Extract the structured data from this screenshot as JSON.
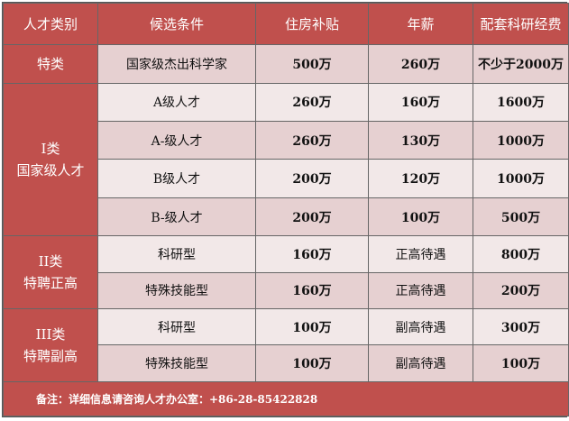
{
  "headers": [
    "人才类别",
    "候选条件",
    "住房补贴",
    "年薪",
    "配套科研经费"
  ],
  "groups": [
    {
      "name": "特类",
      "sub": "",
      "rows": [
        [
          "国家级杰出科学家",
          "500万",
          "260万",
          "不少于2000万"
        ]
      ]
    },
    {
      "name": "I类",
      "sub": "国家级人才",
      "rows": [
        [
          "A级人才",
          "260万",
          "160万",
          "1600万"
        ],
        [
          "A-级人才",
          "260万",
          "130万",
          "1000万"
        ],
        [
          "B级人才",
          "200万",
          "120万",
          "1000万"
        ],
        [
          "B-级人才",
          "200万",
          "100万",
          "500万"
        ]
      ]
    },
    {
      "name": "II类",
      "sub": "特聘正高",
      "rows": [
        [
          "科研型",
          "160万",
          "正高待遇",
          "800万"
        ],
        [
          "特殊技能型",
          "160万",
          "正高待遇",
          "200万"
        ]
      ]
    },
    {
      "name": "III类",
      "sub": "特聘副高",
      "rows": [
        [
          "科研型",
          "100万",
          "副高待遇",
          "300万"
        ],
        [
          "特殊技能型",
          "100万",
          "副高待遇",
          "100万"
        ]
      ]
    }
  ],
  "note": "备注：详细信息请咨询人才办公室：+86-28-85422828",
  "colors": {
    "header": "#c0504d",
    "row_light": "#f2e8e8",
    "row_dark": "#e6d0d1"
  }
}
